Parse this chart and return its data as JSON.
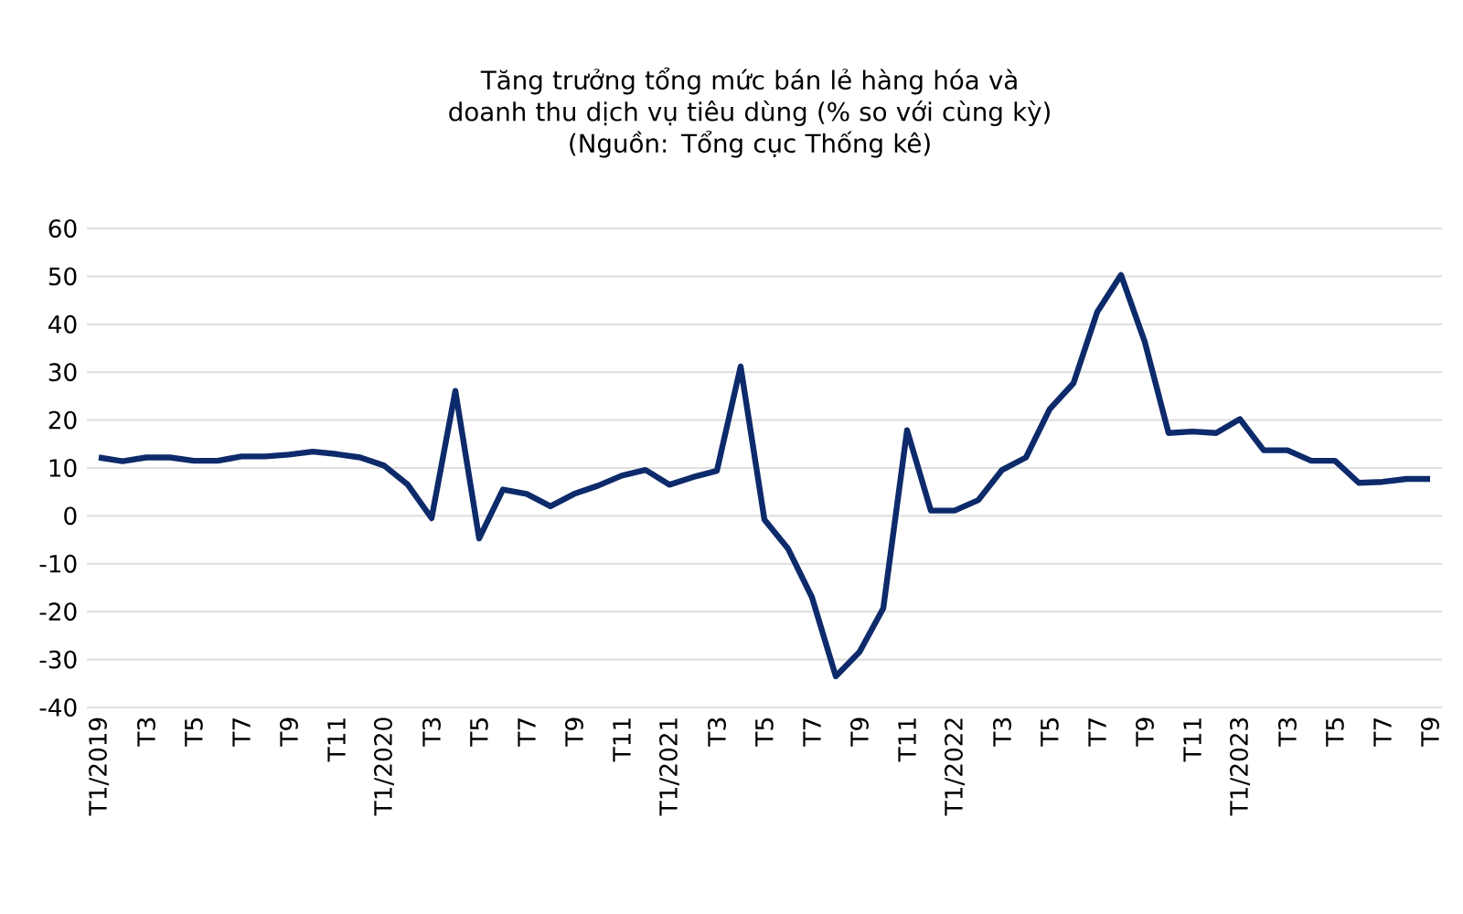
{
  "chart_data": {
    "type": "line",
    "title": "Tăng trưởng tổng mức bán lẻ hàng hóa và doanh thu dịch vụ tiêu dùng (% so với cùng kỳ)",
    "subtitle": "(Nguồn: Tổng cục Thống kê)",
    "categories": [
      "T1/2019",
      null,
      "T3",
      null,
      "T5",
      null,
      "T7",
      null,
      "T9",
      null,
      "T11",
      null,
      "T1/2020",
      null,
      "T3",
      null,
      "T5",
      null,
      "T7",
      null,
      "T9",
      null,
      "T11",
      null,
      "T1/2021",
      null,
      "T3",
      null,
      "T5",
      null,
      "T7",
      null,
      "T9",
      null,
      "T11",
      null,
      "T1/2022",
      null,
      "T3",
      null,
      "T5",
      null,
      "T7",
      null,
      "T9",
      null,
      "T11",
      null,
      "T1/2023",
      null,
      "T3",
      null,
      "T5",
      null,
      "T7",
      null,
      "T9"
    ],
    "series": [
      {
        "color": "#0d2a6b",
        "values": [
          12.2,
          11.4,
          12.2,
          12.2,
          11.5,
          11.5,
          12.4,
          12.4,
          12.8,
          13.4,
          12.9,
          12.2,
          10.5,
          6.5,
          -0.5,
          26.1,
          -4.7,
          5.5,
          4.6,
          2,
          4.6,
          6.3,
          8.4,
          9.6,
          6.5,
          8.1,
          9.4,
          31.2,
          -0.8,
          -6.9,
          -17,
          -33.5,
          -28.4,
          -19.3,
          17.9,
          1.1,
          1.1,
          3.3,
          9.6,
          12.2,
          22.3,
          27.7,
          42.6,
          50.3,
          36.3,
          17.3,
          17.6,
          17.3,
          20.2,
          13.7,
          13.7,
          11.5,
          11.5,
          6.9,
          7.1,
          7.7,
          7.7
        ]
      }
    ],
    "ylim": [
      -40,
      60
    ],
    "yticks": [
      -40,
      -30,
      -20,
      -10,
      0,
      10,
      20,
      30,
      40,
      50,
      60
    ],
    "grid": "y",
    "marker": "none",
    "line_style": "solid"
  }
}
